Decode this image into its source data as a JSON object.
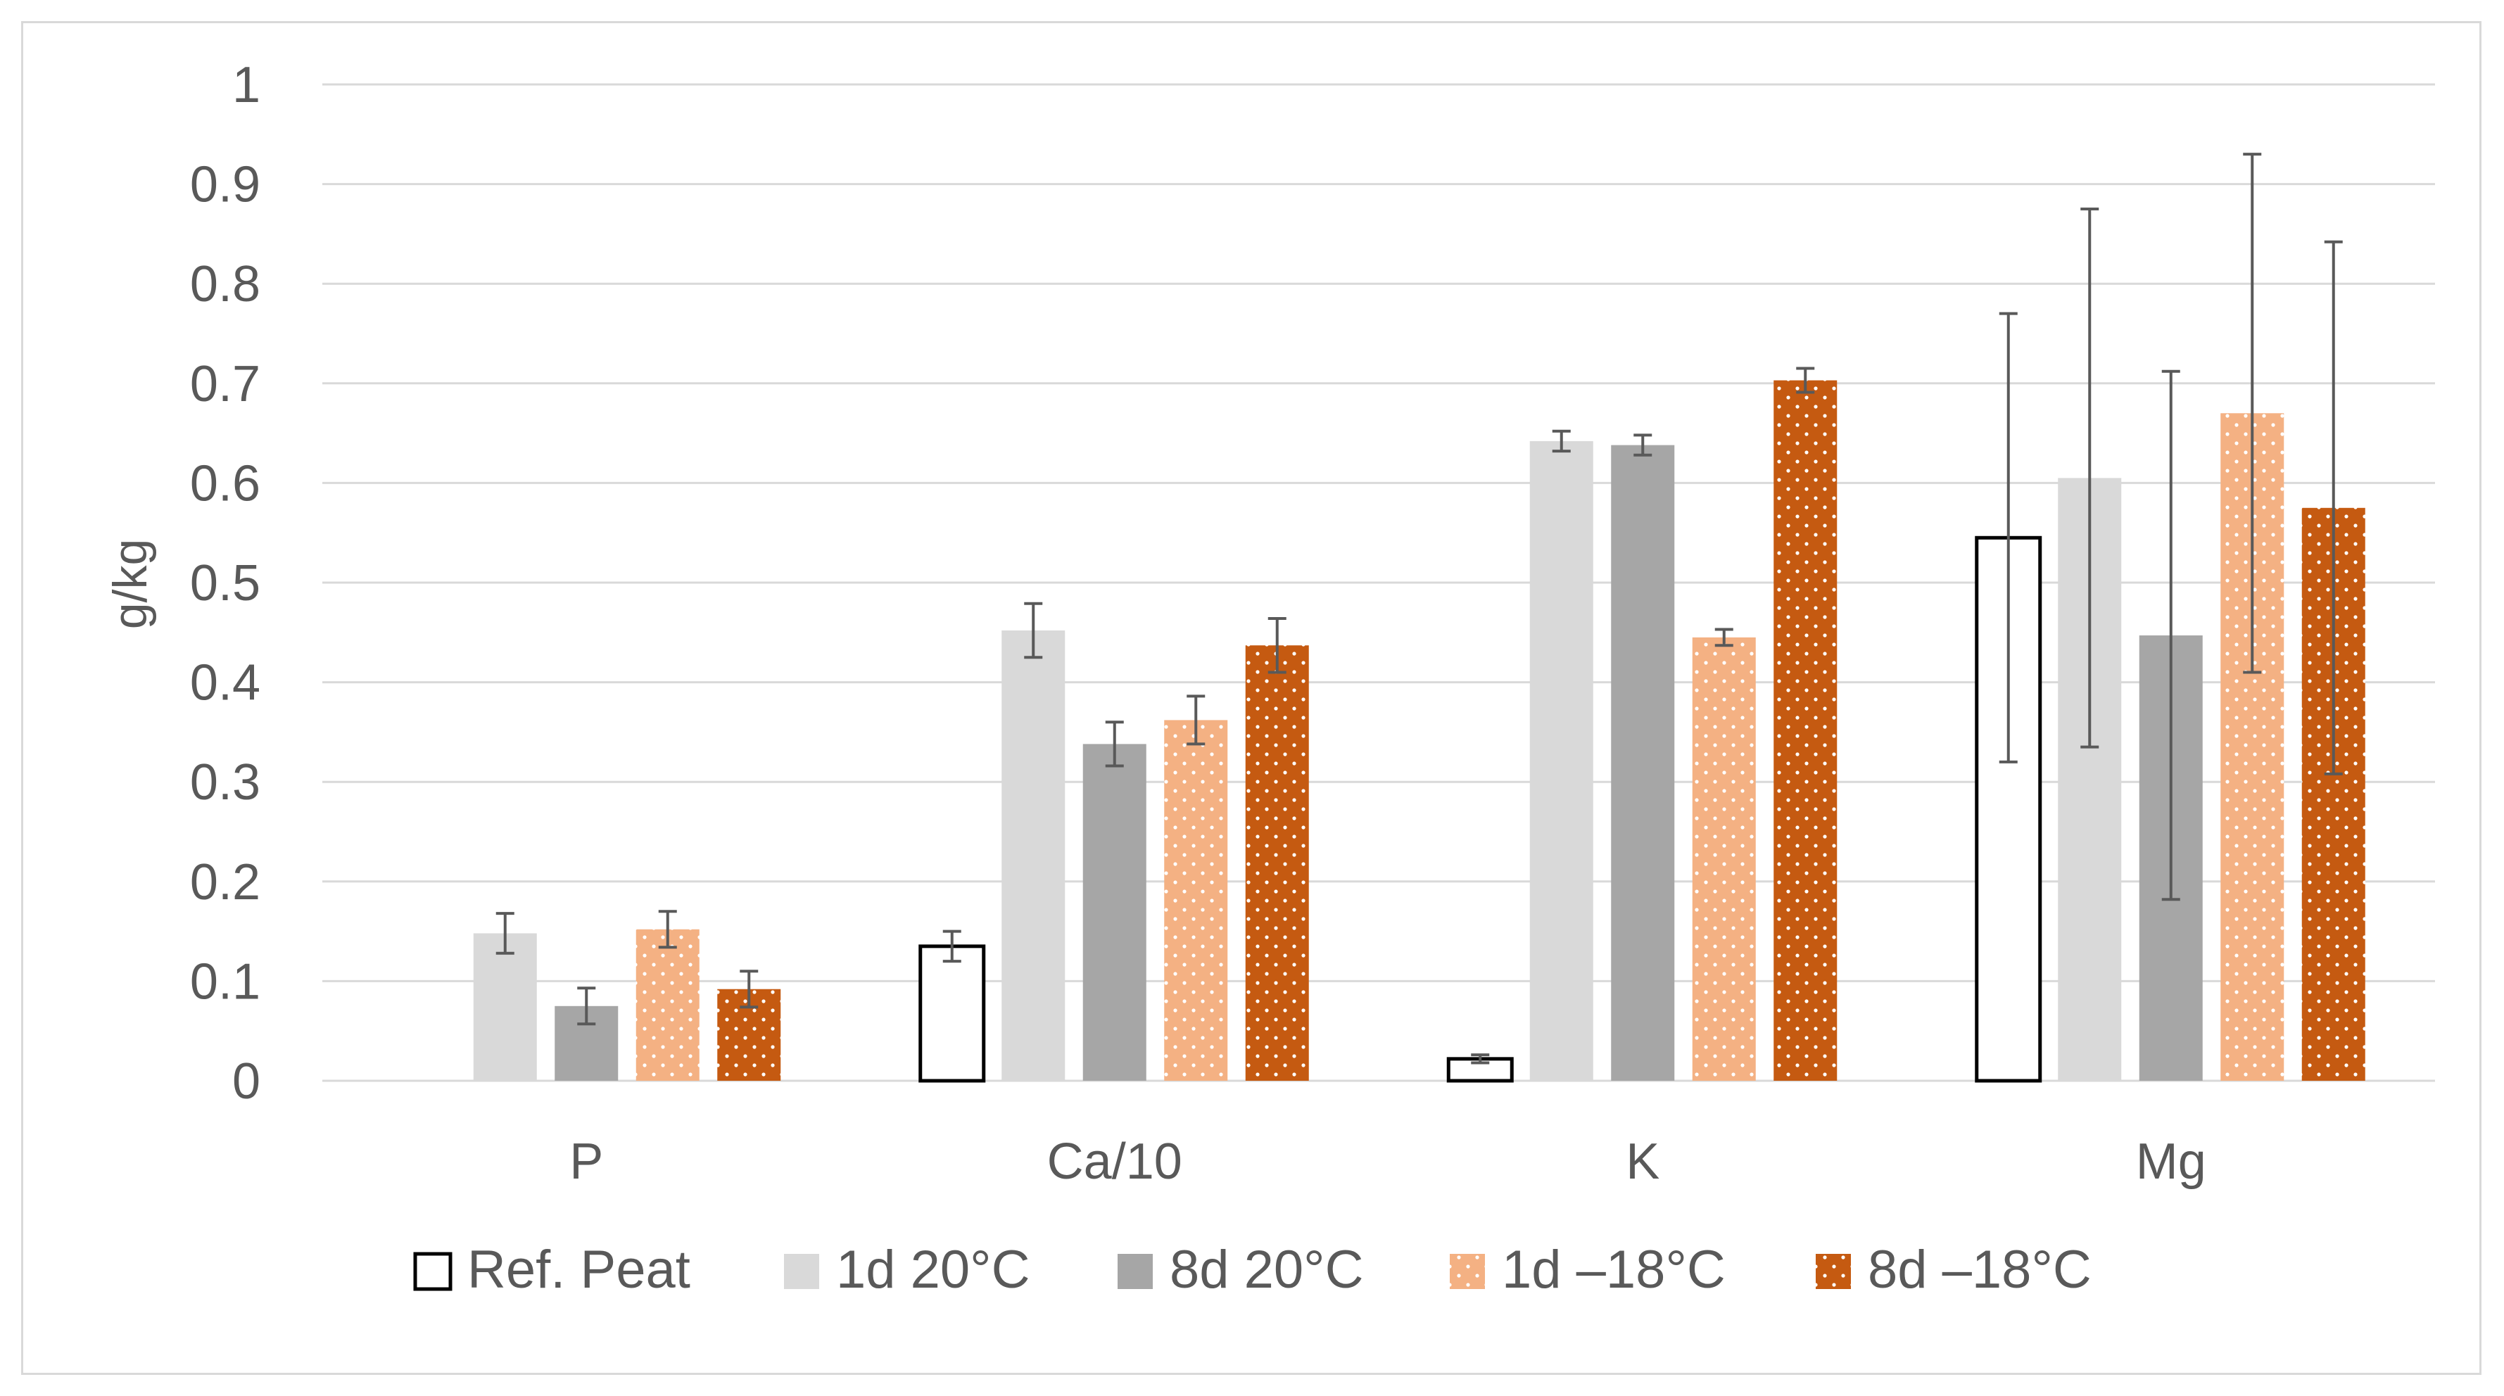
{
  "chart_data": {
    "type": "bar",
    "title": "",
    "xlabel": "",
    "ylabel": "g/kg",
    "ylim": [
      0,
      1
    ],
    "yticks": [
      0,
      0.1,
      0.2,
      0.3,
      0.4,
      0.5,
      0.6,
      0.7,
      0.8,
      0.9,
      1
    ],
    "ytick_labels": [
      "0",
      "0.1",
      "0.2",
      "0.3",
      "0.4",
      "0.5",
      "0.6",
      "0.7",
      "0.8",
      "0.9",
      "1"
    ],
    "grid": true,
    "legend_position": "bottom",
    "categories": [
      "P",
      "Ca/10",
      "K",
      "Mg"
    ],
    "series": [
      {
        "name": "Ref. Peat",
        "fill": "#ffffff",
        "stroke": "#000000",
        "pattern": "none",
        "values": [
          null,
          0.135,
          0.022,
          0.545
        ],
        "errors": [
          null,
          0.015,
          0.004,
          0.225
        ]
      },
      {
        "name": "1d 20°C",
        "fill": "#d9d9d9",
        "stroke": "none",
        "pattern": "none",
        "values": [
          0.148,
          0.452,
          0.642,
          0.605
        ],
        "errors": [
          0.02,
          0.027,
          0.01,
          0.27
        ]
      },
      {
        "name": "8d 20°C",
        "fill": "#a6a6a6",
        "stroke": "none",
        "pattern": "none",
        "values": [
          0.075,
          0.338,
          0.638,
          0.447
        ],
        "errors": [
          0.018,
          0.022,
          0.01,
          0.265
        ]
      },
      {
        "name": "1d –18°C",
        "fill": "#f4b183",
        "stroke": "none",
        "pattern": "dots",
        "values": [
          0.152,
          0.362,
          0.445,
          0.67
        ],
        "errors": [
          0.018,
          0.024,
          0.008,
          0.26
        ]
      },
      {
        "name": "8d –18°C",
        "fill": "#c55a11",
        "stroke": "none",
        "pattern": "dots",
        "values": [
          0.092,
          0.437,
          0.703,
          0.575
        ],
        "errors": [
          0.018,
          0.027,
          0.012,
          0.267
        ]
      }
    ]
  }
}
